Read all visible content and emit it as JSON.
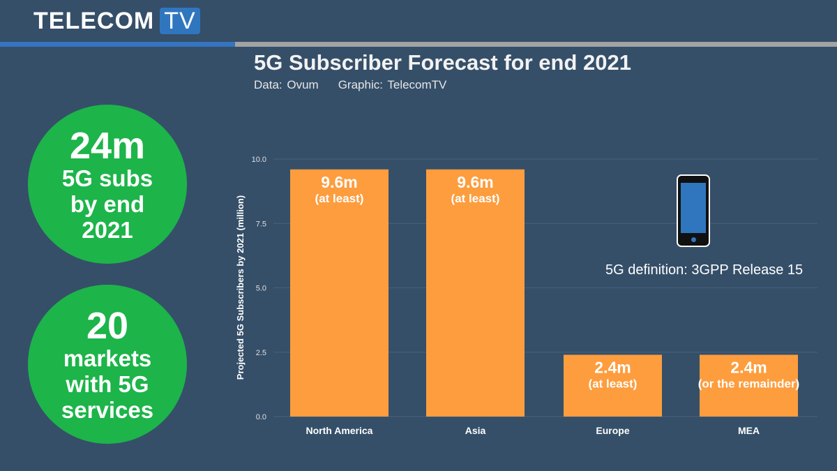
{
  "brand": {
    "logo_text": "TELECOM",
    "logo_badge": "TV",
    "accent_blue": "#3574c0"
  },
  "header": {
    "title": "5G Subscriber Forecast for end 2021",
    "source": "Data: Ovum",
    "graphic": "Graphic: TelecomTV"
  },
  "stats": [
    {
      "value": "24m",
      "lines": [
        "5G subs",
        "by end",
        "2021"
      ]
    },
    {
      "value": "20",
      "lines": [
        "markets",
        "with 5G",
        "services"
      ]
    }
  ],
  "note": {
    "icon": "smartphone-icon",
    "text": "5G definition: 3GPP Release 15"
  },
  "chart_data": {
    "type": "bar",
    "title": "5G Subscriber Forecast for end 2021",
    "xlabel": "",
    "ylabel": "Projected 5G Subscribers by 2021 (million)",
    "categories": [
      "North America",
      "Asia",
      "Europe",
      "MEA"
    ],
    "values": [
      9.6,
      9.6,
      2.4,
      2.4
    ],
    "data_labels": [
      [
        "9.6m",
        "(at least)"
      ],
      [
        "9.6m",
        "(at least)"
      ],
      [
        "2.4m",
        "(at least)"
      ],
      [
        "2.4m",
        "(or the remainder)"
      ]
    ],
    "ylim": [
      0,
      10
    ],
    "yticks": [
      "0.0",
      "2.5",
      "5.0",
      "7.5",
      "10.0"
    ],
    "grid": true,
    "bar_color": "#fd9d3e"
  }
}
